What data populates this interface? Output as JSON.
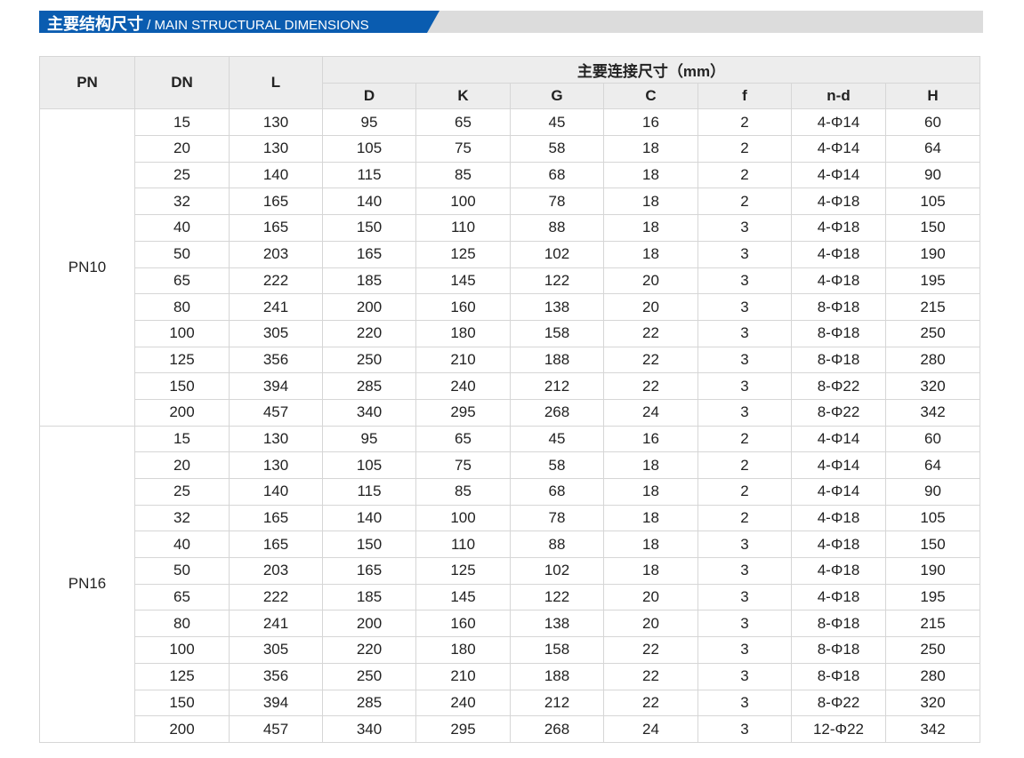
{
  "header": {
    "title_cn": "主要结构尺寸",
    "title_en": " / MAIN STRUCTURAL DIMENSIONS",
    "accent": "#0a5cb0"
  },
  "table": {
    "headers": {
      "pn": "PN",
      "dn": "DN",
      "l": "L",
      "group": "主要连接尺寸（mm）",
      "sub": [
        "D",
        "K",
        "G",
        "C",
        "f",
        "n-d",
        "H"
      ]
    },
    "groups": [
      {
        "pn": "PN10",
        "rows": [
          [
            "15",
            "130",
            "95",
            "65",
            "45",
            "16",
            "2",
            "4-Φ14",
            "60"
          ],
          [
            "20",
            "130",
            "105",
            "75",
            "58",
            "18",
            "2",
            "4-Φ14",
            "64"
          ],
          [
            "25",
            "140",
            "115",
            "85",
            "68",
            "18",
            "2",
            "4-Φ14",
            "90"
          ],
          [
            "32",
            "165",
            "140",
            "100",
            "78",
            "18",
            "2",
            "4-Φ18",
            "105"
          ],
          [
            "40",
            "165",
            "150",
            "110",
            "88",
            "18",
            "3",
            "4-Φ18",
            "150"
          ],
          [
            "50",
            "203",
            "165",
            "125",
            "102",
            "18",
            "3",
            "4-Φ18",
            "190"
          ],
          [
            "65",
            "222",
            "185",
            "145",
            "122",
            "20",
            "3",
            "4-Φ18",
            "195"
          ],
          [
            "80",
            "241",
            "200",
            "160",
            "138",
            "20",
            "3",
            "8-Φ18",
            "215"
          ],
          [
            "100",
            "305",
            "220",
            "180",
            "158",
            "22",
            "3",
            "8-Φ18",
            "250"
          ],
          [
            "125",
            "356",
            "250",
            "210",
            "188",
            "22",
            "3",
            "8-Φ18",
            "280"
          ],
          [
            "150",
            "394",
            "285",
            "240",
            "212",
            "22",
            "3",
            "8-Φ22",
            "320"
          ],
          [
            "200",
            "457",
            "340",
            "295",
            "268",
            "24",
            "3",
            "8-Φ22",
            "342"
          ]
        ]
      },
      {
        "pn": "PN16",
        "rows": [
          [
            "15",
            "130",
            "95",
            "65",
            "45",
            "16",
            "2",
            "4-Φ14",
            "60"
          ],
          [
            "20",
            "130",
            "105",
            "75",
            "58",
            "18",
            "2",
            "4-Φ14",
            "64"
          ],
          [
            "25",
            "140",
            "115",
            "85",
            "68",
            "18",
            "2",
            "4-Φ14",
            "90"
          ],
          [
            "32",
            "165",
            "140",
            "100",
            "78",
            "18",
            "2",
            "4-Φ18",
            "105"
          ],
          [
            "40",
            "165",
            "150",
            "110",
            "88",
            "18",
            "3",
            "4-Φ18",
            "150"
          ],
          [
            "50",
            "203",
            "165",
            "125",
            "102",
            "18",
            "3",
            "4-Φ18",
            "190"
          ],
          [
            "65",
            "222",
            "185",
            "145",
            "122",
            "20",
            "3",
            "4-Φ18",
            "195"
          ],
          [
            "80",
            "241",
            "200",
            "160",
            "138",
            "20",
            "3",
            "8-Φ18",
            "215"
          ],
          [
            "100",
            "305",
            "220",
            "180",
            "158",
            "22",
            "3",
            "8-Φ18",
            "250"
          ],
          [
            "125",
            "356",
            "250",
            "210",
            "188",
            "22",
            "3",
            "8-Φ18",
            "280"
          ],
          [
            "150",
            "394",
            "285",
            "240",
            "212",
            "22",
            "3",
            "8-Φ22",
            "320"
          ],
          [
            "200",
            "457",
            "340",
            "295",
            "268",
            "24",
            "3",
            "12-Φ22",
            "342"
          ]
        ]
      }
    ]
  }
}
